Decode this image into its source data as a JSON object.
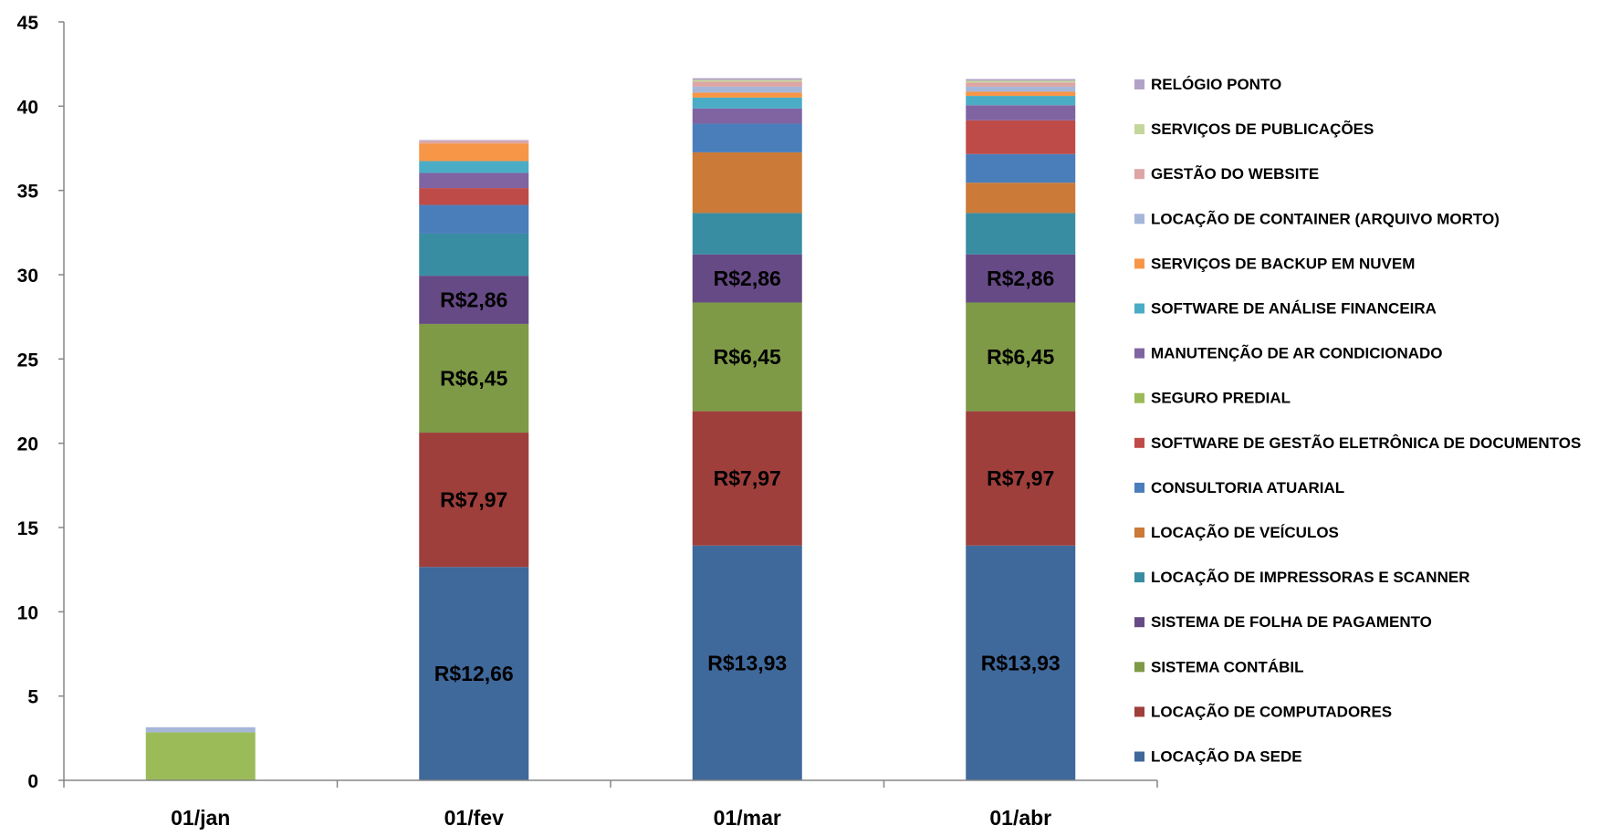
{
  "chart_data": {
    "type": "bar",
    "stacked": true,
    "categories": [
      "01/jan",
      "01/fev",
      "01/mar",
      "01/abr"
    ],
    "ylim": [
      0,
      45
    ],
    "yticks": [
      0,
      5,
      10,
      15,
      20,
      25,
      30,
      35,
      40,
      45
    ],
    "grid": false,
    "legend_position": "right",
    "series": [
      {
        "name": "LOCAÇÃO DA SEDE",
        "color": "#3F689B",
        "values": [
          0,
          12.66,
          13.93,
          13.93
        ],
        "labels": [
          "",
          "R$12,66",
          "R$13,93",
          "R$13,93"
        ]
      },
      {
        "name": "LOCAÇÃO DE COMPUTADORES",
        "color": "#9E3F3C",
        "values": [
          0,
          7.97,
          7.97,
          7.97
        ],
        "labels": [
          "",
          "R$7,97",
          "R$7,97",
          "R$7,97"
        ]
      },
      {
        "name": "SISTEMA CONTÁBIL",
        "color": "#7E9A47",
        "values": [
          0,
          6.45,
          6.45,
          6.45
        ],
        "labels": [
          "",
          "R$6,45",
          "R$6,45",
          "R$6,45"
        ]
      },
      {
        "name": "SISTEMA DE FOLHA DE PAGAMENTO",
        "color": "#664A85",
        "values": [
          0,
          2.86,
          2.86,
          2.86
        ],
        "labels": [
          "",
          "R$2,86",
          "R$2,86",
          "R$2,86"
        ]
      },
      {
        "name": "LOCAÇÃO DE IMPRESSORAS E SCANNER",
        "color": "#388DA3",
        "values": [
          0,
          2.5,
          2.45,
          2.45
        ],
        "labels": [
          "",
          "",
          "",
          ""
        ]
      },
      {
        "name": "LOCAÇÃO DE VEÍCULOS",
        "color": "#CB7A37",
        "values": [
          0,
          0,
          3.6,
          1.8
        ],
        "labels": [
          "",
          "",
          "",
          ""
        ]
      },
      {
        "name": "CONSULTORIA ATUARIAL",
        "color": "#4A7EBB",
        "values": [
          0,
          1.7,
          1.7,
          1.7
        ],
        "labels": [
          "",
          "",
          "",
          ""
        ]
      },
      {
        "name": "SOFTWARE DE GESTÃO ELETRÔNICA DE DOCUMENTOS",
        "color": "#BE4B48",
        "values": [
          0,
          1.0,
          0,
          2.0
        ],
        "labels": [
          "",
          "",
          "",
          ""
        ]
      },
      {
        "name": "SEGURO PREDIAL",
        "color": "#9BBB59",
        "values": [
          2.85,
          0,
          0,
          0
        ],
        "labels": [
          "",
          "",
          "",
          ""
        ]
      },
      {
        "name": "MANUTENÇÃO DE AR CONDICIONADO",
        "color": "#8064A2",
        "values": [
          0,
          0.9,
          0.9,
          0.9
        ],
        "labels": [
          "",
          "",
          "",
          ""
        ]
      },
      {
        "name": "SOFTWARE DE ANÁLISE FINANCEIRA",
        "color": "#4BACC6",
        "values": [
          0,
          0.7,
          0.65,
          0.55
        ],
        "labels": [
          "",
          "",
          "",
          ""
        ]
      },
      {
        "name": "SERVIÇOS DE BACKUP EM NUVEM",
        "color": "#F79646",
        "values": [
          0,
          1.05,
          0.3,
          0.25
        ],
        "labels": [
          "",
          "",
          "",
          ""
        ]
      },
      {
        "name": "LOCAÇÃO DE CONTAINER (ARQUIVO MORTO)",
        "color": "#A5B6D9",
        "values": [
          0.3,
          0,
          0.35,
          0.3
        ],
        "labels": [
          "",
          "",
          "",
          ""
        ]
      },
      {
        "name": "GESTÃO DO WEBSITE",
        "color": "#DDA6A4",
        "values": [
          0,
          0.15,
          0.3,
          0.25
        ],
        "labels": [
          "",
          "",
          "",
          ""
        ]
      },
      {
        "name": "SERVIÇOS DE PUBLICAÇÕES",
        "color": "#C3D69B",
        "values": [
          0,
          0,
          0.1,
          0.1
        ],
        "labels": [
          "",
          "",
          "",
          ""
        ]
      },
      {
        "name": "RELÓGIO PONTO",
        "color": "#B3A2C7",
        "values": [
          0,
          0.05,
          0.1,
          0.1
        ],
        "labels": [
          "",
          "",
          "",
          ""
        ]
      }
    ]
  }
}
